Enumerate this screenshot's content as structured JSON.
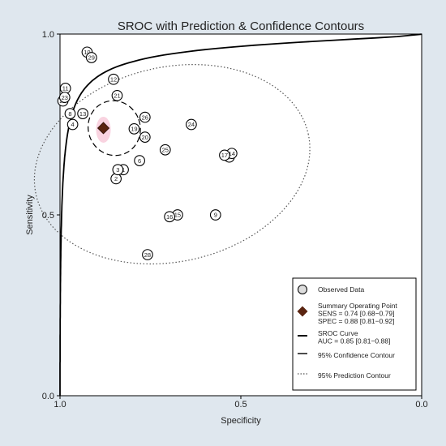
{
  "chart_data": {
    "type": "scatter",
    "title": "SROC with Prediction & Confidence Contours",
    "xlabel": "Specificity",
    "ylabel": "Sensitivity",
    "xlim": [
      1.0,
      0.0
    ],
    "ylim": [
      0.0,
      1.0
    ],
    "x_reversed": true,
    "xticks": [
      "1.0",
      "0.5",
      "0.0"
    ],
    "yticks": [
      "0.0",
      "0.5",
      "1.0"
    ],
    "observed": [
      {
        "label": "1",
        "spec": 0.825,
        "sens": 0.625
      },
      {
        "label": "2",
        "spec": 0.845,
        "sens": 0.6
      },
      {
        "label": "3",
        "spec": 0.84,
        "sens": 0.625
      },
      {
        "label": "4",
        "spec": 0.965,
        "sens": 0.75
      },
      {
        "label": "6",
        "spec": 0.78,
        "sens": 0.65
      },
      {
        "label": "7",
        "spec": 0.532,
        "sens": 0.66
      },
      {
        "label": "8",
        "spec": 0.972,
        "sens": 0.78
      },
      {
        "label": "9",
        "spec": 0.57,
        "sens": 0.5
      },
      {
        "label": "10",
        "spec": 0.925,
        "sens": 0.95
      },
      {
        "label": "11",
        "spec": 0.985,
        "sens": 0.85
      },
      {
        "label": "12",
        "spec": 0.852,
        "sens": 0.875
      },
      {
        "label": "13",
        "spec": 0.937,
        "sens": 0.78
      },
      {
        "label": "14",
        "spec": 0.525,
        "sens": 0.67
      },
      {
        "label": "15",
        "spec": 0.675,
        "sens": 0.5
      },
      {
        "label": "16",
        "spec": 0.697,
        "sens": 0.495
      },
      {
        "label": "17",
        "spec": 0.545,
        "sens": 0.665
      },
      {
        "label": "19",
        "spec": 0.795,
        "sens": 0.738
      },
      {
        "label": "20",
        "spec": 0.765,
        "sens": 0.715
      },
      {
        "label": "21",
        "spec": 0.842,
        "sens": 0.83
      },
      {
        "label": "22",
        "spec": 0.992,
        "sens": 0.815
      },
      {
        "label": "23",
        "spec": 0.987,
        "sens": 0.825
      },
      {
        "label": "24",
        "spec": 0.637,
        "sens": 0.75
      },
      {
        "label": "25",
        "spec": 0.709,
        "sens": 0.68
      },
      {
        "label": "26",
        "spec": 0.765,
        "sens": 0.77
      },
      {
        "label": "28",
        "spec": 0.758,
        "sens": 0.39
      },
      {
        "label": "29",
        "spec": 0.913,
        "sens": 0.935
      }
    ],
    "summary_point": {
      "spec": 0.88,
      "sens": 0.74
    },
    "sroc_curve": {
      "auc": 0.85
    },
    "confidence_contour": {
      "center_spec": 0.85,
      "center_sens": 0.74
    },
    "prediction_contour": {
      "center_spec": 0.69,
      "center_sens": 0.64
    },
    "legend": {
      "position": "bottom-right",
      "entries": [
        {
          "kind": "observed",
          "lines": [
            "Observed Data"
          ]
        },
        {
          "kind": "summary",
          "lines": [
            "Summary Operating Point",
            "SENS = 0.74 [0.68−0.79]",
            "SPEC = 0.88 [0.81−0.92]"
          ]
        },
        {
          "kind": "sroc",
          "lines": [
            "SROC Curve",
            "AUC = 0.85 [0.81−0.88]"
          ]
        },
        {
          "kind": "confidence",
          "lines": [
            "95% Confidence Contour"
          ]
        },
        {
          "kind": "prediction",
          "lines": [
            "95% Prediction Contour"
          ]
        }
      ]
    },
    "colors": {
      "background": "#dfe7ee",
      "plot_background": "#ffffff",
      "summary_point": "#5a2410",
      "summary_halo": "#f7c8d8",
      "observed_fill": "#ffffff",
      "line": "#000000"
    }
  }
}
